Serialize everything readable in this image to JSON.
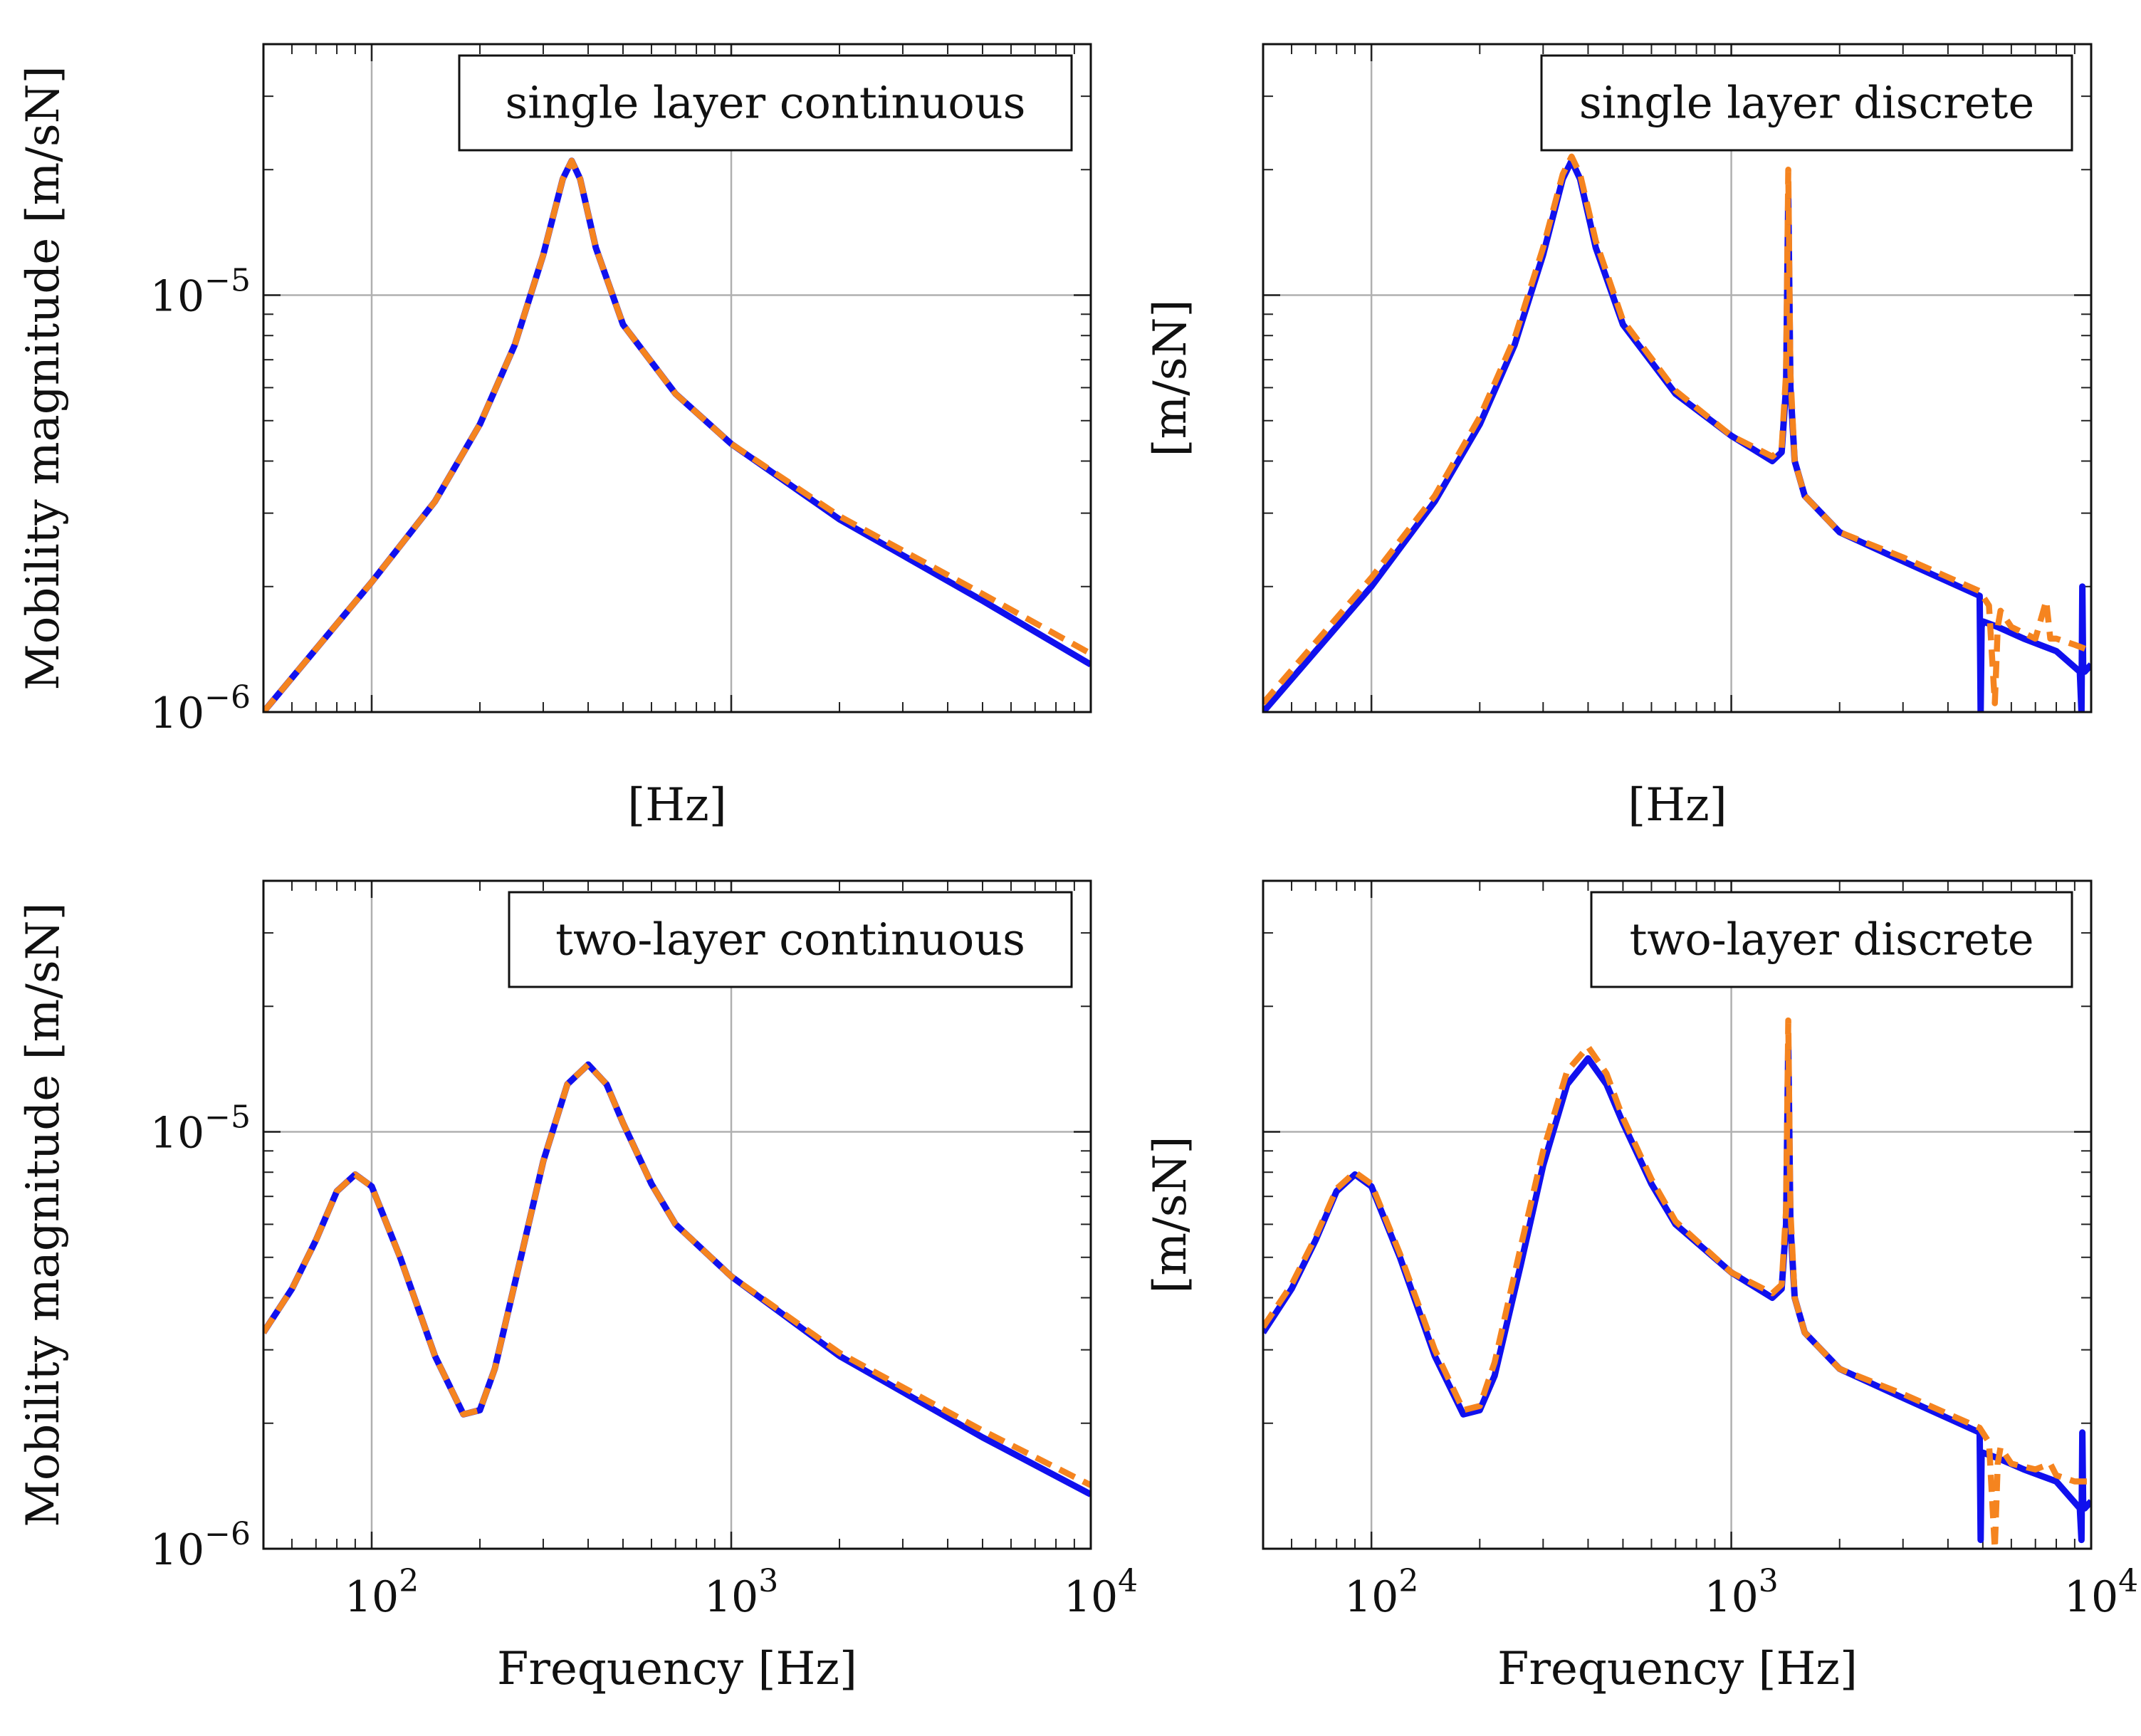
{
  "colors": {
    "series_a": "#1010ee",
    "series_b": "#f5841f",
    "grid": "#b0b0b0"
  },
  "chart_data": [
    {
      "type": "line",
      "title": "single layer continuous",
      "xlabel": "[Hz]",
      "ylabel": "Mobility magnitude [m/sN]",
      "xscale": "log",
      "yscale": "log",
      "xlim": [
        50,
        10000
      ],
      "ylim": [
        1e-06,
        4e-05
      ],
      "xticklabels": [],
      "yticklabels": [
        "10",
        "10"
      ],
      "legend": "top-right",
      "series": [
        {
          "name": "blue solid",
          "style": "solid",
          "x": [
            50,
            100,
            150,
            200,
            250,
            300,
            340,
            360,
            380,
            420,
            500,
            700,
            1000,
            2000,
            5000,
            10000
          ],
          "y": [
            1e-06,
            2.05e-06,
            3.2e-06,
            4.9e-06,
            7.6e-06,
            1.25e-05,
            1.9e-05,
            2.1e-05,
            1.9e-05,
            1.3e-05,
            8.5e-06,
            5.8e-06,
            4.4e-06,
            2.9e-06,
            1.85e-06,
            1.3e-06
          ]
        },
        {
          "name": "orange dashed",
          "style": "dashed",
          "x": [
            50,
            100,
            150,
            200,
            250,
            300,
            340,
            360,
            380,
            420,
            500,
            700,
            1000,
            2000,
            5000,
            10000
          ],
          "y": [
            1e-06,
            2.05e-06,
            3.2e-06,
            4.9e-06,
            7.6e-06,
            1.25e-05,
            1.9e-05,
            2.1e-05,
            1.9e-05,
            1.3e-05,
            8.5e-06,
            5.8e-06,
            4.4e-06,
            2.95e-06,
            1.92e-06,
            1.38e-06
          ]
        }
      ]
    },
    {
      "type": "line",
      "title": "single layer discrete",
      "xlabel": "[Hz]",
      "ylabel": "[m/sN]",
      "xscale": "log",
      "yscale": "log",
      "xlim": [
        50,
        10000
      ],
      "ylim": [
        1e-06,
        4e-05
      ],
      "xticklabels": [],
      "yticklabels": [],
      "legend": "top-right",
      "series": [
        {
          "name": "blue solid",
          "style": "solid",
          "x": [
            50,
            100,
            150,
            200,
            250,
            300,
            340,
            360,
            380,
            420,
            500,
            700,
            1000,
            1300,
            1380,
            1420,
            1440,
            1460,
            1500,
            1600,
            2000,
            3000,
            4900,
            4930,
            4960,
            5000,
            5500,
            6500,
            8000,
            9300,
            9400,
            9450,
            9500,
            9600,
            10000
          ],
          "y": [
            1e-06,
            2e-06,
            3.2e-06,
            4.9e-06,
            7.6e-06,
            1.25e-05,
            1.9e-05,
            2.1e-05,
            1.9e-05,
            1.3e-05,
            8.5e-06,
            5.8e-06,
            4.6e-06,
            4e-06,
            4.2e-06,
            6e-06,
            1.7e-05,
            6e-06,
            4e-06,
            3.3e-06,
            2.7e-06,
            2.3e-06,
            1.9e-06,
            1e-06,
            1.6e-06,
            1.65e-06,
            1.6e-06,
            1.5e-06,
            1.4e-06,
            1.25e-06,
            1e-06,
            2e-06,
            1.3e-06,
            1.25e-06,
            1.3e-06
          ]
        },
        {
          "name": "orange dashed",
          "style": "dashed",
          "x": [
            50,
            100,
            150,
            200,
            250,
            300,
            340,
            360,
            380,
            420,
            500,
            700,
            1000,
            1300,
            1380,
            1420,
            1440,
            1460,
            1500,
            1600,
            2000,
            3000,
            4900,
            5200,
            5400,
            5500,
            5600,
            6000,
            7000,
            7500,
            7700,
            8000,
            9000,
            10000
          ],
          "y": [
            1.05e-06,
            2.1e-06,
            3.3e-06,
            5.1e-06,
            7.9e-06,
            1.3e-05,
            1.95e-05,
            2.15e-05,
            1.95e-05,
            1.35e-05,
            8.7e-06,
            5.9e-06,
            4.6e-06,
            4.1e-06,
            4.3e-06,
            6.5e-06,
            2e-05,
            6.5e-06,
            4e-06,
            3.3e-06,
            2.7e-06,
            2.35e-06,
            1.95e-06,
            1.8e-06,
            1.05e-06,
            1.6e-06,
            1.75e-06,
            1.6e-06,
            1.5e-06,
            1.85e-06,
            1.5e-06,
            1.5e-06,
            1.45e-06,
            1.4e-06
          ]
        }
      ]
    },
    {
      "type": "line",
      "title": "two-layer continuous",
      "xlabel": "Frequency [Hz]",
      "ylabel": "Mobility magnitude [m/sN]",
      "xscale": "log",
      "yscale": "log",
      "xlim": [
        50,
        10000
      ],
      "ylim": [
        1e-06,
        4e-05
      ],
      "xticklabels": [
        "10",
        "10",
        "10"
      ],
      "yticklabels": [
        "10",
        "10"
      ],
      "legend": "top-right",
      "series": [
        {
          "name": "blue solid",
          "style": "solid",
          "x": [
            50,
            60,
            70,
            80,
            90,
            100,
            120,
            150,
            180,
            200,
            220,
            260,
            300,
            350,
            400,
            450,
            500,
            600,
            700,
            1000,
            2000,
            5000,
            10000
          ],
          "y": [
            3.3e-06,
            4.2e-06,
            5.5e-06,
            7.2e-06,
            7.9e-06,
            7.4e-06,
            5e-06,
            2.9e-06,
            2.1e-06,
            2.15e-06,
            2.7e-06,
            5e-06,
            8.5e-06,
            1.3e-05,
            1.45e-05,
            1.3e-05,
            1.05e-05,
            7.5e-06,
            6e-06,
            4.5e-06,
            2.9e-06,
            1.85e-06,
            1.35e-06
          ]
        },
        {
          "name": "orange dashed",
          "style": "dashed",
          "x": [
            50,
            60,
            70,
            80,
            90,
            100,
            120,
            150,
            180,
            200,
            220,
            260,
            300,
            350,
            400,
            450,
            500,
            600,
            700,
            1000,
            2000,
            5000,
            10000
          ],
          "y": [
            3.3e-06,
            4.2e-06,
            5.5e-06,
            7.2e-06,
            7.9e-06,
            7.4e-06,
            5e-06,
            2.9e-06,
            2.1e-06,
            2.15e-06,
            2.7e-06,
            5e-06,
            8.5e-06,
            1.3e-05,
            1.45e-05,
            1.3e-05,
            1.05e-05,
            7.5e-06,
            6e-06,
            4.5e-06,
            2.95e-06,
            1.92e-06,
            1.42e-06
          ]
        }
      ]
    },
    {
      "type": "line",
      "title": "two-layer discrete",
      "xlabel": "Frequency [Hz]",
      "ylabel": "[m/sN]",
      "xscale": "log",
      "yscale": "log",
      "xlim": [
        50,
        10000
      ],
      "ylim": [
        1e-06,
        4e-05
      ],
      "xticklabels": [
        "10",
        "10",
        "10"
      ],
      "yticklabels": [],
      "legend": "top-right",
      "series": [
        {
          "name": "blue solid",
          "style": "solid",
          "x": [
            50,
            60,
            70,
            80,
            90,
            100,
            120,
            150,
            180,
            200,
            220,
            260,
            300,
            350,
            400,
            450,
            500,
            600,
            700,
            1000,
            1300,
            1380,
            1420,
            1440,
            1460,
            1500,
            1600,
            2000,
            3000,
            4900,
            4930,
            4960,
            5000,
            5500,
            6500,
            8000,
            9300,
            9400,
            9450,
            9500,
            9600,
            10000
          ],
          "y": [
            3.3e-06,
            4.2e-06,
            5.5e-06,
            7.2e-06,
            7.9e-06,
            7.4e-06,
            5e-06,
            2.9e-06,
            2.1e-06,
            2.15e-06,
            2.6e-06,
            4.8e-06,
            8.3e-06,
            1.3e-05,
            1.5e-05,
            1.3e-05,
            1.05e-05,
            7.5e-06,
            6e-06,
            4.6e-06,
            4e-06,
            4.2e-06,
            6e-06,
            1.6e-05,
            6e-06,
            4e-06,
            3.3e-06,
            2.7e-06,
            2.3e-06,
            1.9e-06,
            1.05e-06,
            1.7e-06,
            1.7e-06,
            1.65e-06,
            1.55e-06,
            1.45e-06,
            1.25e-06,
            1.05e-06,
            1.9e-06,
            1.3e-06,
            1.25e-06,
            1.3e-06
          ]
        },
        {
          "name": "orange dashed",
          "style": "dashed",
          "x": [
            50,
            60,
            70,
            80,
            90,
            100,
            120,
            150,
            180,
            200,
            220,
            260,
            300,
            350,
            400,
            450,
            500,
            600,
            700,
            1000,
            1300,
            1380,
            1420,
            1440,
            1460,
            1500,
            1600,
            2000,
            3000,
            4900,
            5200,
            5400,
            5500,
            5600,
            6000,
            7000,
            7700,
            8000,
            9000,
            10000
          ],
          "y": [
            3.4e-06,
            4.3e-06,
            5.6e-06,
            7.3e-06,
            8e-06,
            7.5e-06,
            5.1e-06,
            3e-06,
            2.15e-06,
            2.2e-06,
            2.8e-06,
            5.3e-06,
            9e-06,
            1.4e-05,
            1.6e-05,
            1.38e-05,
            1.08e-05,
            7.7e-06,
            6.1e-06,
            4.6e-06,
            4.1e-06,
            4.3e-06,
            6.5e-06,
            1.85e-05,
            6.5e-06,
            4e-06,
            3.3e-06,
            2.7e-06,
            2.35e-06,
            1.95e-06,
            1.8e-06,
            1e-06,
            1.6e-06,
            1.75e-06,
            1.6e-06,
            1.55e-06,
            1.6e-06,
            1.5e-06,
            1.45e-06,
            1.45e-06
          ]
        }
      ]
    }
  ],
  "tick_exponents": {
    "x": [
      "2",
      "3",
      "4"
    ],
    "y": [
      "−6",
      "−5"
    ]
  }
}
